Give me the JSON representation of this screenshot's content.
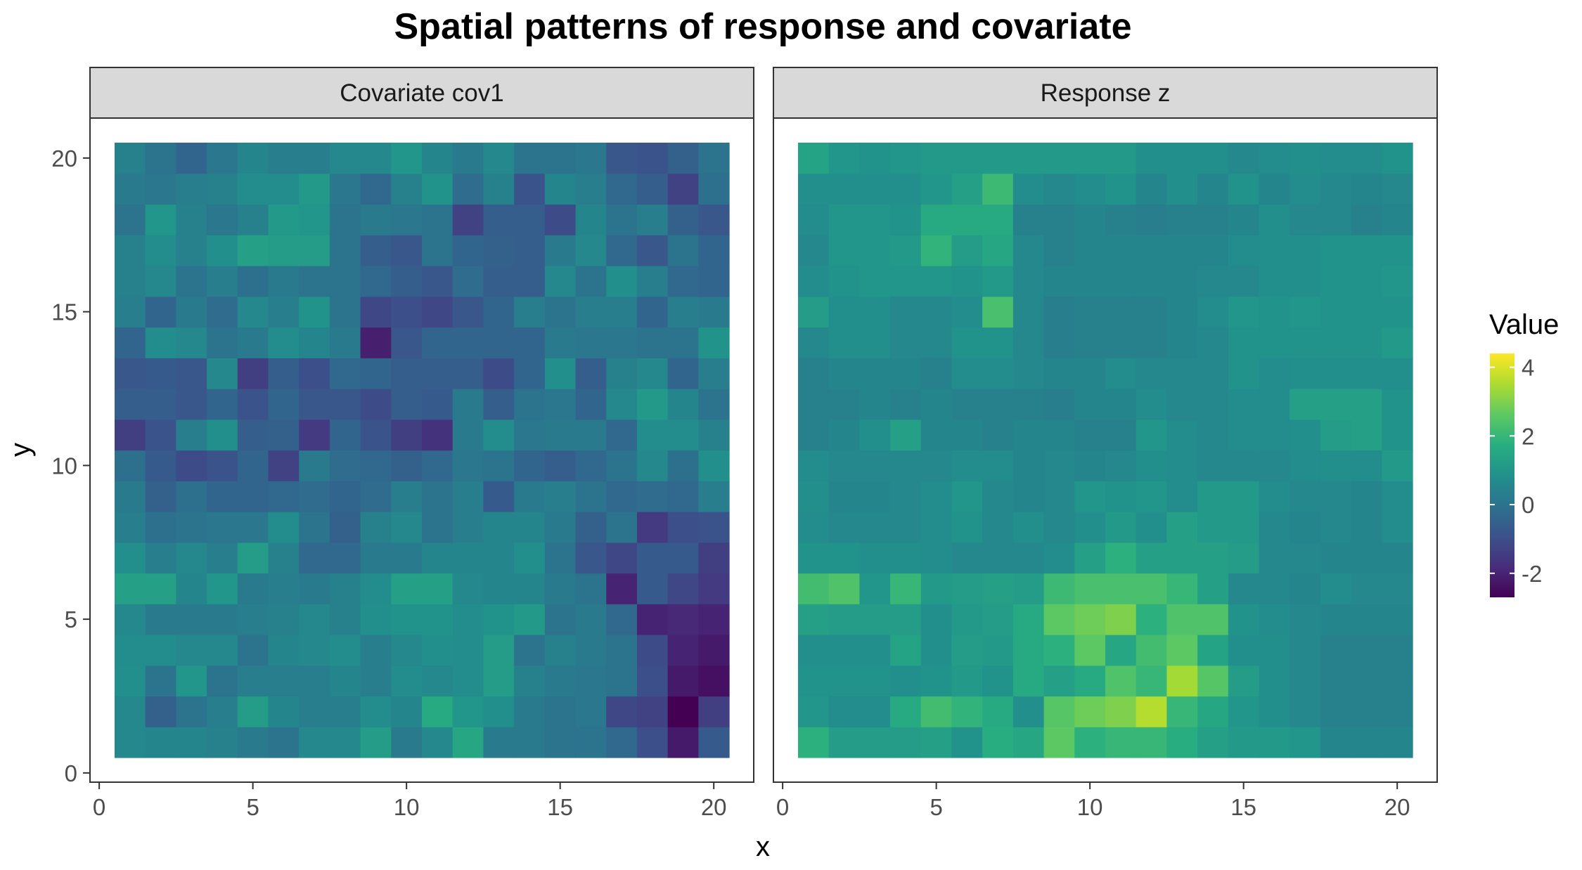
{
  "chart_data": {
    "type": "heatmap",
    "title": "Spatial patterns of response and covariate",
    "xlabel": "x",
    "ylabel": "y",
    "x_ticks": [
      0,
      5,
      10,
      15,
      20
    ],
    "y_ticks": [
      0,
      5,
      10,
      15,
      20
    ],
    "xlim": [
      -0.3,
      21.3
    ],
    "ylim": [
      -0.3,
      21.3
    ],
    "grid": false,
    "legend": {
      "title": "Value",
      "ticks": [
        4,
        2,
        0,
        -2
      ],
      "range": [
        -2.7,
        4.4
      ],
      "colormap": "viridis",
      "placement": "right"
    },
    "x": [
      1,
      2,
      3,
      4,
      5,
      6,
      7,
      8,
      9,
      10,
      11,
      12,
      13,
      14,
      15,
      16,
      17,
      18,
      19,
      20
    ],
    "y": [
      1,
      2,
      3,
      4,
      5,
      6,
      7,
      8,
      9,
      10,
      11,
      12,
      13,
      14,
      15,
      16,
      17,
      18,
      19,
      20
    ],
    "panels": [
      {
        "name": "Covariate cov1",
        "z": [
          [
            0.6,
            0.5,
            0.5,
            0.4,
            0.2,
            0.0,
            0.6,
            0.6,
            1.2,
            0.2,
            0.6,
            1.5,
            0.2,
            0.2,
            0.0,
            0.0,
            -0.3,
            -1.0,
            -2.2,
            -0.7
          ],
          [
            0.6,
            -0.5,
            0.0,
            0.3,
            1.2,
            0.5,
            0.3,
            0.3,
            0.7,
            0.5,
            1.6,
            1.0,
            0.8,
            0.2,
            0.0,
            0.1,
            -1.2,
            -1.3,
            -2.7,
            -1.4
          ],
          [
            0.8,
            0.0,
            1.0,
            0.0,
            0.3,
            0.3,
            0.3,
            0.5,
            0.3,
            0.7,
            0.6,
            0.7,
            1.2,
            0.4,
            0.2,
            0.1,
            0.0,
            -1.0,
            -2.2,
            -2.4
          ],
          [
            0.7,
            0.7,
            0.6,
            0.6,
            0.0,
            0.5,
            0.6,
            0.7,
            0.3,
            0.6,
            0.8,
            0.7,
            1.2,
            0.0,
            0.4,
            0.2,
            0.0,
            -1.1,
            -2.0,
            -2.2
          ],
          [
            0.6,
            0.2,
            0.2,
            0.2,
            0.3,
            0.4,
            0.6,
            0.4,
            0.8,
            0.9,
            0.9,
            0.7,
            0.9,
            1.1,
            0.0,
            0.2,
            -0.3,
            -2.0,
            -1.9,
            -2.0
          ],
          [
            1.3,
            1.3,
            0.5,
            1.0,
            0.2,
            0.3,
            0.2,
            0.4,
            0.7,
            1.3,
            1.3,
            0.6,
            0.5,
            0.5,
            0.2,
            0.0,
            -2.0,
            -0.7,
            -1.2,
            -1.5
          ],
          [
            0.8,
            0.3,
            0.6,
            0.3,
            1.2,
            0.4,
            -0.3,
            -0.3,
            0.2,
            0.2,
            0.5,
            0.5,
            0.5,
            0.8,
            0.0,
            -0.8,
            -1.2,
            -0.7,
            -0.7,
            -1.4
          ],
          [
            0.3,
            -0.1,
            0.0,
            0.1,
            0.1,
            0.7,
            0.0,
            -0.5,
            0.4,
            0.6,
            0.0,
            0.3,
            0.5,
            0.5,
            0.2,
            -0.5,
            0.0,
            -1.5,
            -1.0,
            -0.9
          ],
          [
            0.2,
            -0.5,
            -0.1,
            -0.4,
            -0.4,
            -0.3,
            -0.2,
            -0.4,
            -0.2,
            0.3,
            0.0,
            0.3,
            -0.7,
            0.2,
            0.3,
            0.0,
            -0.3,
            -0.2,
            -0.3,
            0.3
          ],
          [
            -0.1,
            -0.7,
            -1.1,
            -0.9,
            -0.4,
            -1.3,
            0.2,
            -0.2,
            -0.3,
            -0.5,
            -0.3,
            0.1,
            0.0,
            -0.4,
            -0.6,
            -0.3,
            0.0,
            0.6,
            -0.1,
            0.8
          ],
          [
            -1.4,
            -0.9,
            0.3,
            0.8,
            -0.6,
            -0.5,
            -1.5,
            -0.4,
            -0.9,
            -1.4,
            -1.7,
            0.2,
            0.7,
            0.1,
            0.2,
            0.2,
            -0.3,
            0.7,
            0.7,
            0.4
          ],
          [
            -0.6,
            -0.6,
            -0.8,
            -0.4,
            -0.9,
            -0.4,
            -0.8,
            -0.8,
            -1.1,
            -0.6,
            -0.7,
            0.2,
            -0.6,
            0.0,
            0.1,
            -0.4,
            0.6,
            1.1,
            0.5,
            0.0
          ],
          [
            -0.8,
            -0.7,
            -0.8,
            0.6,
            -1.4,
            -0.6,
            -1.0,
            -0.3,
            -0.4,
            -0.6,
            -0.6,
            -0.6,
            -1.1,
            -0.4,
            0.8,
            -0.6,
            0.4,
            0.6,
            -0.4,
            0.3
          ],
          [
            -0.4,
            0.7,
            0.6,
            0.0,
            0.2,
            0.7,
            0.5,
            0.2,
            -2.1,
            -0.8,
            -0.4,
            -0.4,
            -0.4,
            -0.4,
            0.2,
            0.1,
            0.1,
            0.0,
            0.0,
            0.9
          ],
          [
            0.3,
            -0.4,
            0.2,
            -0.2,
            0.6,
            0.3,
            0.9,
            0.0,
            -1.2,
            -1.0,
            -1.2,
            -0.8,
            -0.4,
            0.3,
            0.0,
            0.3,
            0.3,
            -0.4,
            0.3,
            0.2
          ],
          [
            0.4,
            0.6,
            0.0,
            0.3,
            -0.1,
            0.2,
            0.0,
            0.0,
            -0.3,
            -0.6,
            -0.8,
            -0.2,
            -0.6,
            -0.6,
            0.6,
            0.0,
            0.8,
            0.3,
            -0.3,
            -0.4
          ],
          [
            0.4,
            0.7,
            0.4,
            0.8,
            1.3,
            1.2,
            1.2,
            0.0,
            -0.6,
            -0.8,
            0.0,
            -0.4,
            -0.5,
            -0.6,
            0.2,
            0.6,
            -0.3,
            -0.8,
            0.0,
            -0.4
          ],
          [
            0.0,
            1.0,
            0.4,
            0.1,
            0.4,
            1.1,
            1.0,
            0.0,
            0.2,
            0.1,
            0.0,
            -1.3,
            -0.6,
            -0.6,
            -1.1,
            0.5,
            0.0,
            0.3,
            -0.5,
            -0.8
          ],
          [
            0.2,
            0.1,
            0.3,
            0.4,
            0.7,
            0.7,
            1.1,
            0.1,
            -0.3,
            0.4,
            0.9,
            -0.2,
            0.4,
            -0.9,
            0.5,
            0.3,
            -0.3,
            -0.6,
            -1.3,
            -0.1
          ],
          [
            0.4,
            0.0,
            -0.4,
            0.1,
            0.5,
            0.3,
            0.3,
            0.6,
            0.6,
            1.0,
            0.5,
            0.2,
            0.6,
            0.0,
            0.0,
            0.1,
            -0.8,
            -0.9,
            -0.5,
            0.0
          ]
        ]
      },
      {
        "name": "Response z",
        "z": [
          [
            1.8,
            1.2,
            1.2,
            1.2,
            1.3,
            0.9,
            1.7,
            1.5,
            2.6,
            1.8,
            2.0,
            2.0,
            1.7,
            1.3,
            1.1,
            1.1,
            1.0,
            0.5,
            0.5,
            0.5
          ],
          [
            1.0,
            0.7,
            0.7,
            1.6,
            2.2,
            1.9,
            1.6,
            0.8,
            2.5,
            2.8,
            3.0,
            3.6,
            2.0,
            1.5,
            1.0,
            0.8,
            0.6,
            0.4,
            0.4,
            0.4
          ],
          [
            0.9,
            0.9,
            0.9,
            0.8,
            0.9,
            1.1,
            0.9,
            1.6,
            1.3,
            1.6,
            2.4,
            2.0,
            3.4,
            2.5,
            1.2,
            0.8,
            0.6,
            0.4,
            0.4,
            0.4
          ],
          [
            0.8,
            0.8,
            0.8,
            1.4,
            0.8,
            1.2,
            1.1,
            1.6,
            1.8,
            2.6,
            1.5,
            2.2,
            2.6,
            1.4,
            0.8,
            0.8,
            0.6,
            0.4,
            0.4,
            0.4
          ],
          [
            1.3,
            1.2,
            1.2,
            1.2,
            0.8,
            1.1,
            1.2,
            1.6,
            2.6,
            2.8,
            3.0,
            1.8,
            2.4,
            2.4,
            0.9,
            0.7,
            0.6,
            0.5,
            0.5,
            0.5
          ],
          [
            2.2,
            2.4,
            1.0,
            2.0,
            1.1,
            1.2,
            1.3,
            1.2,
            2.1,
            2.3,
            2.3,
            2.3,
            2.0,
            1.3,
            0.6,
            0.6,
            0.5,
            0.7,
            0.6,
            0.6
          ],
          [
            0.9,
            0.9,
            0.8,
            0.8,
            0.7,
            0.6,
            0.6,
            0.6,
            0.7,
            1.3,
            1.8,
            1.3,
            1.3,
            1.3,
            1.2,
            0.6,
            0.6,
            0.5,
            0.5,
            0.5
          ],
          [
            0.7,
            0.6,
            0.6,
            0.6,
            0.7,
            0.9,
            0.6,
            0.8,
            0.6,
            0.8,
            1.1,
            0.8,
            1.3,
            1.1,
            1.1,
            0.6,
            0.5,
            0.6,
            0.5,
            0.7
          ],
          [
            0.8,
            0.5,
            0.5,
            0.6,
            0.7,
            1.0,
            0.6,
            0.5,
            0.6,
            1.0,
            0.9,
            1.0,
            0.7,
            1.1,
            1.1,
            0.7,
            0.6,
            0.6,
            0.5,
            0.7
          ],
          [
            0.7,
            0.6,
            0.6,
            0.6,
            0.6,
            0.7,
            0.7,
            0.5,
            0.6,
            0.5,
            0.6,
            0.8,
            0.7,
            0.6,
            0.6,
            0.6,
            0.7,
            0.8,
            0.7,
            1.1
          ],
          [
            0.4,
            0.5,
            0.8,
            1.3,
            0.5,
            0.5,
            0.4,
            0.5,
            0.5,
            0.4,
            0.4,
            1.0,
            0.7,
            0.6,
            0.7,
            0.7,
            0.8,
            1.2,
            1.3,
            0.9
          ],
          [
            0.4,
            0.4,
            0.5,
            0.4,
            0.5,
            0.4,
            0.4,
            0.4,
            0.3,
            0.5,
            0.5,
            0.7,
            0.6,
            0.6,
            0.7,
            0.7,
            1.3,
            1.3,
            1.3,
            0.9
          ],
          [
            0.4,
            0.5,
            0.5,
            0.5,
            0.4,
            0.7,
            0.7,
            0.6,
            0.5,
            0.5,
            0.7,
            0.6,
            0.6,
            0.6,
            0.9,
            0.7,
            0.8,
            0.8,
            0.8,
            0.8
          ],
          [
            0.6,
            0.8,
            0.8,
            0.6,
            0.6,
            0.9,
            0.9,
            0.6,
            0.3,
            0.4,
            0.4,
            0.4,
            0.5,
            0.6,
            0.9,
            0.9,
            0.9,
            0.9,
            0.9,
            1.1
          ],
          [
            1.2,
            0.8,
            0.8,
            0.6,
            0.6,
            0.7,
            2.3,
            0.6,
            0.3,
            0.4,
            0.4,
            0.4,
            0.5,
            0.7,
            1.0,
            0.9,
            1.0,
            0.9,
            0.9,
            0.9
          ],
          [
            0.7,
            0.9,
            1.0,
            1.0,
            1.0,
            0.9,
            1.1,
            0.6,
            0.5,
            0.5,
            0.5,
            0.5,
            0.5,
            0.6,
            0.6,
            0.8,
            0.8,
            0.9,
            0.9,
            1.0
          ],
          [
            0.6,
            1.0,
            1.0,
            1.1,
            1.9,
            1.2,
            1.5,
            0.6,
            0.4,
            0.5,
            0.5,
            0.5,
            0.5,
            0.5,
            0.7,
            0.8,
            0.8,
            0.9,
            0.9,
            0.9
          ],
          [
            0.7,
            1.0,
            1.0,
            0.9,
            1.6,
            1.6,
            1.6,
            0.4,
            0.4,
            0.5,
            0.4,
            0.3,
            0.4,
            0.4,
            0.5,
            0.8,
            0.6,
            0.6,
            0.4,
            0.5
          ],
          [
            0.8,
            0.8,
            0.8,
            0.8,
            1.0,
            1.3,
            2.1,
            0.7,
            0.6,
            0.7,
            0.9,
            0.5,
            0.8,
            0.5,
            0.9,
            0.5,
            0.7,
            0.6,
            0.5,
            0.6
          ],
          [
            1.4,
            1.0,
            0.9,
            1.0,
            1.1,
            1.1,
            1.1,
            1.1,
            1.1,
            1.1,
            1.1,
            0.8,
            0.8,
            0.8,
            0.6,
            0.7,
            0.8,
            0.7,
            0.7,
            0.9
          ]
        ]
      }
    ]
  }
}
